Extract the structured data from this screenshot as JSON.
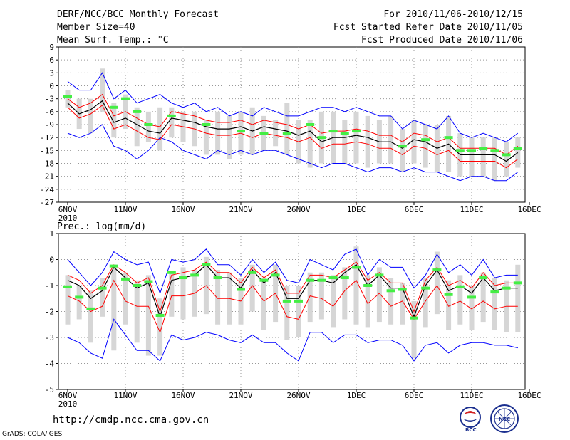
{
  "header": {
    "title": "DERF/NCC/BCC Monthly Forecast",
    "member_size": "Member Size=40",
    "variable": "Mean Surf. Temp.: °C",
    "period": "For 2010/11/06-2010/12/15",
    "started": "Fcst Started Refer Date 2010/11/05",
    "produced": "Fcst Produced Date 2010/11/06"
  },
  "footer": {
    "url": "http://cmdp.ncc.cma.gov.cn",
    "grads": "GrADS: COLA/IGES"
  },
  "logos": {
    "left": "BCC",
    "right": "NCC"
  },
  "colors": {
    "bar": "#d6d6d6",
    "median": "#000000",
    "inner": "#ff0000",
    "outer": "#0000ff",
    "obs": "#44ee44",
    "grid": "#999999"
  },
  "chart_data": [
    {
      "type": "line",
      "title": "Mean Surf. Temp.: °C",
      "x_ticks": [
        "6NOV",
        "11NOV",
        "16NOV",
        "21NOV",
        "26NOV",
        "1DEC",
        "6DEC",
        "11DEC",
        "16DEC"
      ],
      "x_year": "2010",
      "ylim": [
        -27,
        9
      ],
      "y_ticks": [
        9,
        6,
        3,
        0,
        -3,
        -6,
        -9,
        -12,
        -15,
        -18,
        -21,
        -24,
        -27
      ],
      "days": 40,
      "median": [
        -4,
        -6.5,
        -5.5,
        -3.5,
        -8.5,
        -7.5,
        -9,
        -10.5,
        -11,
        -7.5,
        -8,
        -8.5,
        -9.5,
        -10,
        -10,
        -9.5,
        -10.5,
        -9.5,
        -10,
        -10.5,
        -11.5,
        -10.5,
        -13,
        -12,
        -12,
        -11.5,
        -12,
        -13,
        -13,
        -14.5,
        -12.5,
        -13,
        -14.5,
        -13.5,
        -16,
        -16,
        -16,
        -16,
        -17.5,
        -15.5
      ],
      "inner_upper": [
        -3,
        -5,
        -4,
        -2,
        -7,
        -6,
        -7.5,
        -9,
        -9.5,
        -6,
        -6.5,
        -7,
        -8,
        -8.5,
        -8.5,
        -8,
        -9,
        -8,
        -8.5,
        -9,
        -10,
        -9,
        -11,
        -10.5,
        -10.5,
        -10,
        -10.5,
        -11.5,
        -11.5,
        -13,
        -11,
        -11.5,
        -13,
        -12,
        -14.5,
        -14.5,
        -14.5,
        -14.5,
        -16,
        -14
      ],
      "inner_lower": [
        -5,
        -7.5,
        -6.5,
        -4.5,
        -10,
        -9,
        -10.5,
        -12,
        -12.5,
        -9,
        -9.5,
        -10,
        -11,
        -11.5,
        -11.5,
        -11,
        -12,
        -11,
        -11.5,
        -12,
        -13,
        -12,
        -14.5,
        -13.5,
        -13.5,
        -13,
        -13.5,
        -14.5,
        -14.5,
        -16,
        -14,
        -14.5,
        -16,
        -15,
        -17.5,
        -17.5,
        -17.5,
        -17.5,
        -19,
        -17
      ],
      "outer_upper": [
        1,
        -1,
        -1,
        3,
        -3,
        -1,
        -4,
        -3,
        -2,
        -4,
        -5,
        -4,
        -6,
        -5,
        -7,
        -6,
        -7,
        -5,
        -6,
        -7,
        -7,
        -6,
        -5,
        -5,
        -6,
        -5,
        -6,
        -7,
        -7,
        -10,
        -8,
        -9,
        -10,
        -7,
        -11,
        -12,
        -11,
        -12,
        -13,
        -11
      ],
      "outer_lower": [
        -11,
        -12,
        -11,
        -9,
        -14,
        -15,
        -17,
        -15,
        -12,
        -13,
        -15,
        -16,
        -17,
        -15,
        -16,
        -15,
        -16,
        -15,
        -15,
        -16,
        -17,
        -18,
        -19,
        -18,
        -18,
        -19,
        -20,
        -19,
        -19,
        -20,
        -19,
        -20,
        -20,
        -21,
        -22,
        -21,
        -21,
        -22,
        -22,
        -20
      ],
      "bar_top": [
        -1,
        -3,
        -3,
        4,
        -4,
        -2,
        -5,
        -6,
        -5,
        -5,
        -6,
        -6,
        -8,
        -6,
        -7,
        -6,
        -5,
        -7,
        -8,
        -4,
        -8,
        -8,
        -6,
        -6,
        -8,
        -6,
        -7,
        -8,
        -7,
        -10,
        -8,
        -9,
        -9,
        -7,
        -11,
        -12,
        -12,
        -12,
        -13,
        -12
      ],
      "bar_bottom": [
        -5,
        -10,
        -11,
        -6,
        -12,
        -10,
        -14,
        -13,
        -15,
        -12,
        -13,
        -14,
        -16,
        -16,
        -17,
        -16,
        -16,
        -15,
        -14,
        -16,
        -18,
        -19,
        -18,
        -18,
        -18,
        -18,
        -19,
        -18,
        -18,
        -20,
        -18,
        -19,
        -20,
        -20,
        -21,
        -21,
        -21,
        -22,
        -21,
        -19
      ],
      "observed": [
        -2.5,
        null,
        null,
        null,
        -5,
        -3,
        -6,
        -9,
        null,
        -7,
        null,
        null,
        -9,
        null,
        null,
        -10.5,
        null,
        -11,
        null,
        -11,
        null,
        -9,
        -12,
        -10.5,
        -11,
        -10.5,
        null,
        null,
        null,
        -14,
        null,
        -12.5,
        null,
        -12,
        -15,
        -15,
        -14.5,
        -15,
        -16,
        -14.5
      ]
    },
    {
      "type": "line",
      "title": "Prec.: log(mm/d)",
      "x_ticks": [
        "6NOV",
        "11NOV",
        "16NOV",
        "21NOV",
        "26NOV",
        "1DEC",
        "6DEC",
        "11DEC",
        "16DEC"
      ],
      "x_year": "2010",
      "ylim": [
        -5,
        1
      ],
      "y_ticks": [
        1,
        0,
        -1,
        -2,
        -3,
        -4,
        -5
      ],
      "days": 40,
      "median": [
        -0.8,
        -1,
        -1.5,
        -1.2,
        -0.3,
        -0.7,
        -1.1,
        -0.9,
        -2.2,
        -0.8,
        -0.7,
        -0.6,
        -0.2,
        -0.7,
        -0.7,
        -1.1,
        -0.4,
        -0.9,
        -0.5,
        -1.5,
        -1.5,
        -0.8,
        -0.8,
        -0.9,
        -0.5,
        -0.2,
        -1,
        -0.6,
        -1.1,
        -1.1,
        -2.2,
        -1,
        -0.4,
        -1.2,
        -1,
        -1.3,
        -0.7,
        -1.2,
        -1.1,
        -1.1
      ],
      "inner_upper": [
        -0.6,
        -0.8,
        -1.3,
        -1,
        -0.2,
        -0.5,
        -0.9,
        -0.7,
        -2,
        -0.6,
        -0.5,
        -0.4,
        -0.1,
        -0.5,
        -0.5,
        -0.9,
        -0.3,
        -0.7,
        -0.4,
        -1.3,
        -1.3,
        -0.6,
        -0.6,
        -0.7,
        -0.4,
        -0.1,
        -0.8,
        -0.5,
        -0.9,
        -0.9,
        -2,
        -0.8,
        -0.3,
        -1,
        -0.8,
        -1.1,
        -0.5,
        -1,
        -0.9,
        -0.9
      ],
      "inner_lower": [
        -1.4,
        -1.6,
        -2,
        -1.8,
        -0.8,
        -1.6,
        -1.8,
        -1.8,
        -2.8,
        -1.4,
        -1.4,
        -1.3,
        -1,
        -1.5,
        -1.5,
        -1.6,
        -1,
        -1.6,
        -1.3,
        -2.2,
        -2.3,
        -1.4,
        -1.5,
        -1.8,
        -1.2,
        -0.8,
        -1.7,
        -1.3,
        -1.8,
        -1.6,
        -2.3,
        -1.6,
        -1,
        -1.8,
        -1.6,
        -1.9,
        -1.6,
        -1.9,
        -1.8,
        -1.8
      ],
      "outer_upper": [
        0,
        -0.5,
        -1,
        -0.5,
        0.3,
        0,
        -0.2,
        -0.1,
        -1.3,
        0,
        -0.1,
        0,
        0.4,
        -0.2,
        -0.2,
        -0.6,
        0,
        -0.5,
        -0.1,
        -0.8,
        -0.9,
        0,
        -0.2,
        -0.4,
        0.2,
        0.4,
        -0.6,
        0,
        -0.3,
        -0.3,
        -1.1,
        -0.6,
        0.2,
        -0.5,
        -0.2,
        -0.6,
        0,
        -0.7,
        -0.6,
        -0.6
      ],
      "outer_lower": [
        -3,
        -3.2,
        -3.6,
        -3.8,
        -2.3,
        -2.9,
        -3.5,
        -3.5,
        -3.9,
        -2.9,
        -3.1,
        -3,
        -2.8,
        -2.9,
        -3.1,
        -3.2,
        -2.9,
        -3.2,
        -3.2,
        -3.6,
        -3.9,
        -2.8,
        -2.8,
        -3.2,
        -2.9,
        -2.9,
        -3.2,
        -3.1,
        -3.1,
        -3.3,
        -3.9,
        -3.3,
        -3.2,
        -3.6,
        -3.3,
        -3.2,
        -3.2,
        -3.3,
        -3.3,
        -3.4
      ],
      "bar_top": [
        -0.6,
        -1,
        -1.2,
        -0.7,
        -0.2,
        -0.5,
        -0.8,
        -0.6,
        -1.5,
        -0.5,
        -0.3,
        -0.4,
        0.1,
        -0.4,
        -0.5,
        -0.7,
        -0.2,
        -0.7,
        -0.2,
        -1,
        -1,
        -0.5,
        -0.5,
        -0.6,
        -0.3,
        0.5,
        -0.6,
        -0.3,
        -0.7,
        -0.9,
        -1.6,
        -0.7,
        0.3,
        -0.8,
        -0.6,
        -1,
        -0.5,
        -0.7,
        -0.8,
        -0.2
      ],
      "bar_bottom": [
        -2.5,
        -2.3,
        -3.2,
        -2.2,
        -3.5,
        -2.5,
        -3.2,
        -3.7,
        -3.7,
        -2.2,
        -2.3,
        -2.2,
        -2.1,
        -2.5,
        -2.5,
        -2.5,
        -2,
        -2.7,
        -2.4,
        -3.1,
        -3,
        -2.4,
        -2.3,
        -2.6,
        -2.3,
        -2.5,
        -2.6,
        -2.4,
        -2.5,
        -2.5,
        -3.8,
        -2.6,
        -2.1,
        -2.7,
        -2.5,
        -2.7,
        -2.4,
        -2.7,
        -2.8,
        -2.8
      ],
      "observed": [
        -1.05,
        -1.45,
        -1.9,
        -1.1,
        -0.25,
        -0.75,
        -1,
        -0.85,
        -2.15,
        -0.5,
        -0.7,
        -0.6,
        -0.2,
        -0.7,
        null,
        -1.15,
        -0.5,
        -0.8,
        -0.6,
        -1.6,
        -1.6,
        -0.8,
        -0.8,
        -0.7,
        -0.7,
        -0.3,
        -1,
        -0.6,
        -1.2,
        -1.15,
        -2.25,
        -1.1,
        -0.4,
        -1.35,
        -1.05,
        -1.45,
        -0.7,
        -1.25,
        -1.1,
        -0.9
      ]
    }
  ]
}
